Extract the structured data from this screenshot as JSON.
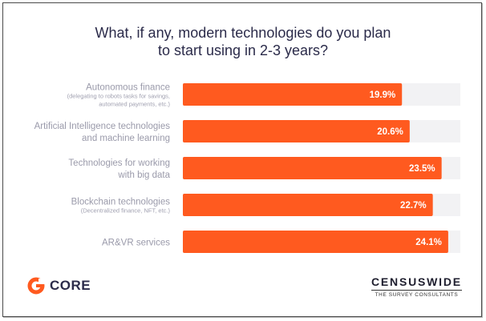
{
  "title_lines": [
    "What, if any, modern technologies do you plan",
    "to start using in 2-3 years?"
  ],
  "brands": {
    "core": "CORE",
    "censuswide": "CENSUSWIDE",
    "censuswide_tagline": "THE SURVEY CONSULTANTS"
  },
  "colors": {
    "bar": "#ff5a1f",
    "track": "#f2f2f4",
    "title": "#2b2b4a",
    "category_text": "#9a9aaa"
  },
  "chart_data": {
    "type": "bar",
    "orientation": "horizontal",
    "title": "What, if any, modern technologies do you plan to start using in 2-3 years?",
    "xlim": [
      0,
      100
    ],
    "grid": false,
    "categories": [
      {
        "lines": [
          "Autonomous finance"
        ],
        "sub": [
          "(delegating to robots tasks for savings,",
          "automated payments, etc.)"
        ]
      },
      {
        "lines": [
          "Artificial Intelligence technologies",
          "and machine learning"
        ],
        "sub": []
      },
      {
        "lines": [
          "Technologies for working",
          "with big data"
        ],
        "sub": []
      },
      {
        "lines": [
          "Blockchain technologies"
        ],
        "sub": [
          "(Decentralized finance, NFT, etc.)"
        ]
      },
      {
        "lines": [
          "AR&VR services"
        ],
        "sub": []
      }
    ],
    "values": [
      19.9,
      20.6,
      23.5,
      22.7,
      24.1
    ],
    "value_labels": [
      "19.9%",
      "20.6%",
      "23.5%",
      "22.7%",
      "24.1%"
    ]
  }
}
